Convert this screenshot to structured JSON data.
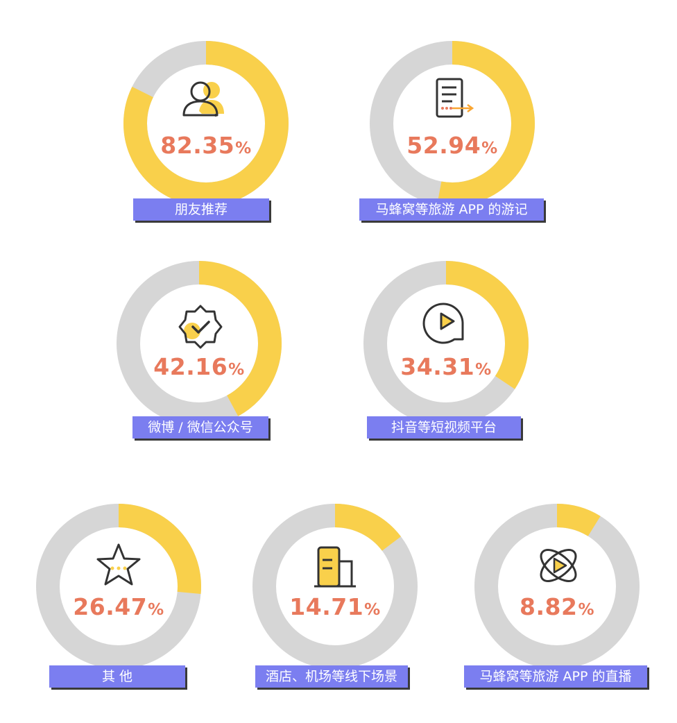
{
  "chart_data": {
    "type": "donut",
    "unit": "%",
    "items": [
      {
        "label": "朋友推荐",
        "value": 82.35,
        "value_text": "82.35",
        "icon": "people-icon"
      },
      {
        "label": "马蜂窝等旅游 APP 的游记",
        "value": 52.94,
        "value_text": "52.94",
        "icon": "document-icon"
      },
      {
        "label": "微博 / 微信公众号",
        "value": 42.16,
        "value_text": "42.16",
        "icon": "verified-badge-icon"
      },
      {
        "label": "抖音等短视频平台",
        "value": 34.31,
        "value_text": "34.31",
        "icon": "play-icon"
      },
      {
        "label": "其 他",
        "value": 26.47,
        "value_text": "26.47",
        "icon": "star-icon"
      },
      {
        "label": "酒店、机场等线下场景",
        "value": 14.71,
        "value_text": "14.71",
        "icon": "building-icon"
      },
      {
        "label": "马蜂窝等旅游 APP 的直播",
        "value": 8.82,
        "value_text": "8.82",
        "icon": "live-orbit-icon"
      }
    ]
  },
  "colors": {
    "filled": "#f9d04b",
    "track": "#d6d6d6",
    "percent_text": "#e8795c",
    "label_bg": "#7b7ef0",
    "label_text": "#ffffff",
    "icon_stroke": "#333333"
  }
}
